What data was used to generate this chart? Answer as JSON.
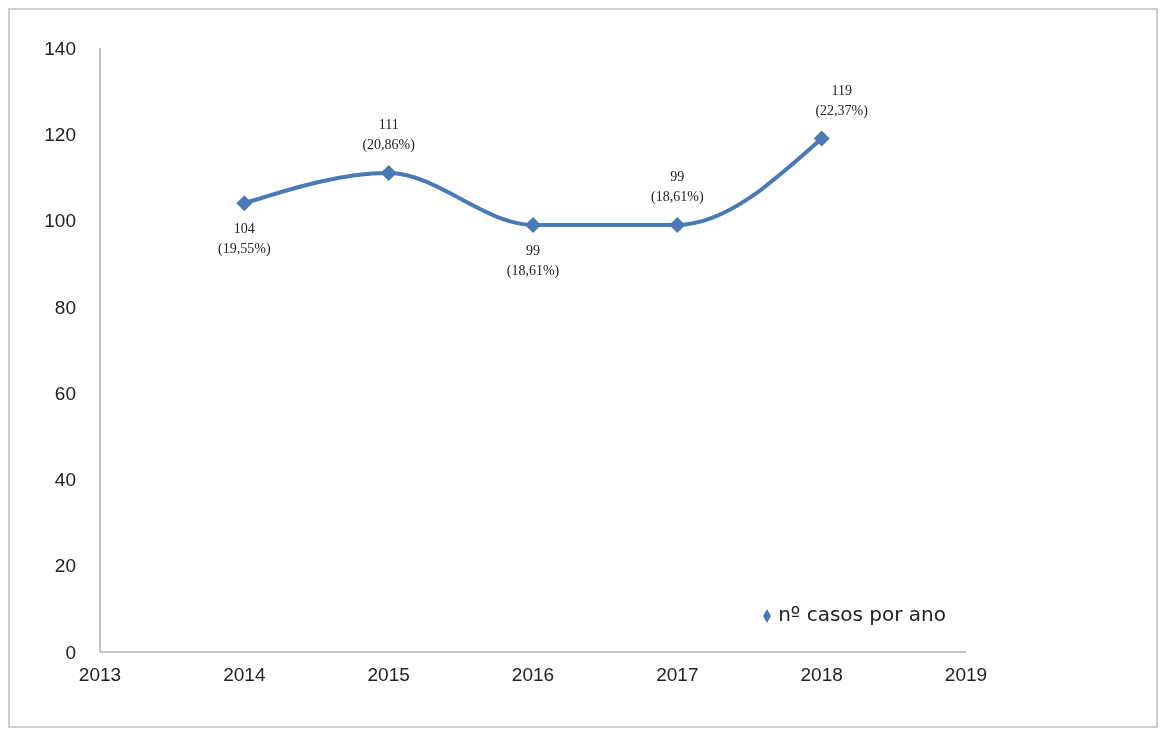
{
  "chart_data": {
    "type": "line",
    "x": [
      2014,
      2015,
      2016,
      2017,
      2018
    ],
    "series": [
      {
        "name": "nº casos por ano",
        "color": "#4a7ab5",
        "values": [
          104,
          111,
          99,
          99,
          119
        ],
        "value_labels": [
          "104\n(19,55%)",
          "111\n(20,86%)",
          "99\n(18,61%)",
          "99\n(18,61%)",
          "119\n(22,37%)"
        ]
      }
    ],
    "xlim": [
      2013,
      2019
    ],
    "xticks": [
      2013,
      2014,
      2015,
      2016,
      2017,
      2018,
      2019
    ],
    "ylim": [
      0,
      140
    ],
    "yticks": [
      0,
      20,
      40,
      60,
      80,
      100,
      120,
      140
    ],
    "grid": false,
    "legend": "bottom right",
    "marker": "diamond",
    "line_style": "solid"
  }
}
